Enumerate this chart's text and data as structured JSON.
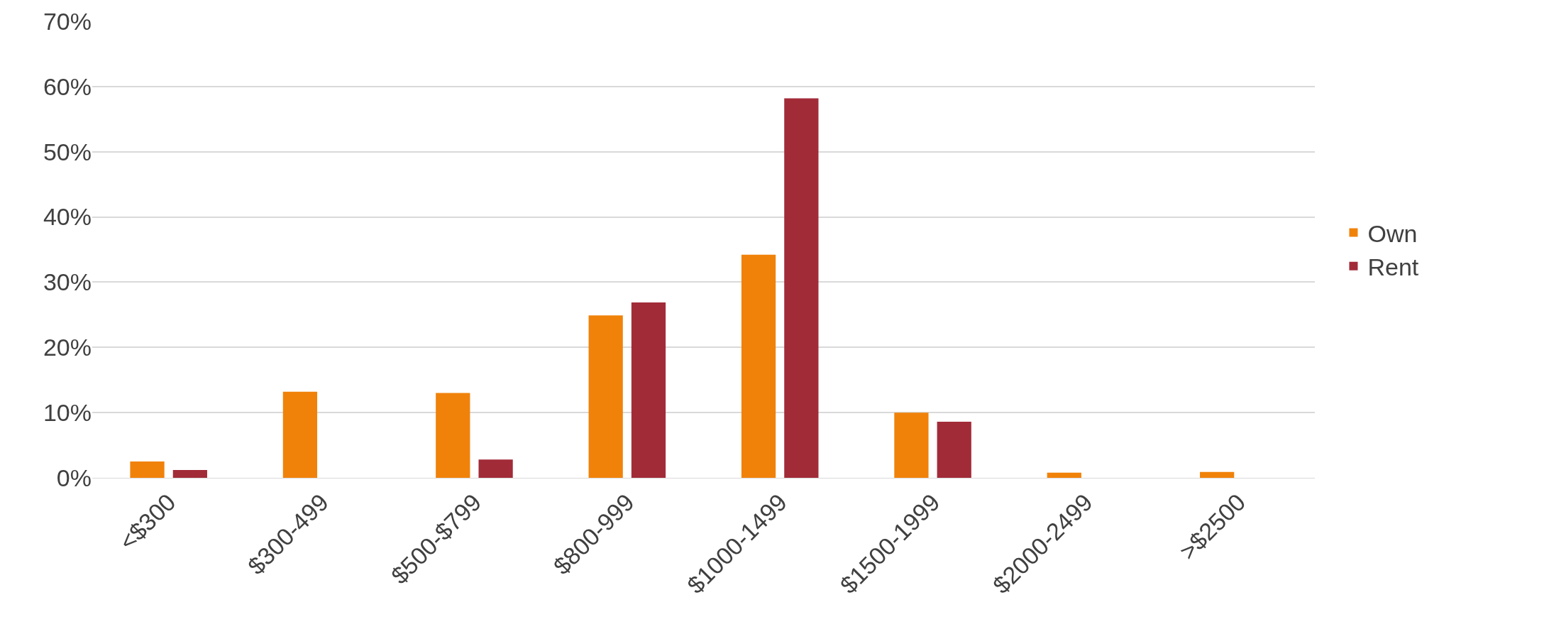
{
  "chart_data": {
    "type": "bar",
    "categories": [
      "<$300",
      "$300-499",
      "$500-$799",
      "$800-999",
      "$1000-1499",
      "$1500-1999",
      "$2000-2499",
      ">$2500"
    ],
    "series": [
      {
        "name": "Own",
        "color": "#f0820a",
        "values": [
          2.5,
          13.2,
          13.0,
          24.9,
          34.2,
          10.0,
          0.8,
          0.9
        ]
      },
      {
        "name": "Rent",
        "color": "#a22b38",
        "values": [
          1.2,
          0,
          2.8,
          26.9,
          58.2,
          8.6,
          0,
          0
        ]
      }
    ],
    "ylim": [
      0,
      70
    ],
    "yticks": [
      {
        "value": 0,
        "label": "0%"
      },
      {
        "value": 10,
        "label": "10%"
      },
      {
        "value": 20,
        "label": "20%"
      },
      {
        "value": 30,
        "label": "30%"
      },
      {
        "value": 40,
        "label": "40%"
      },
      {
        "value": 50,
        "label": "50%"
      },
      {
        "value": 60,
        "label": "60%"
      },
      {
        "value": 70,
        "label": "70%"
      }
    ],
    "grid": "y",
    "legend": "right"
  }
}
